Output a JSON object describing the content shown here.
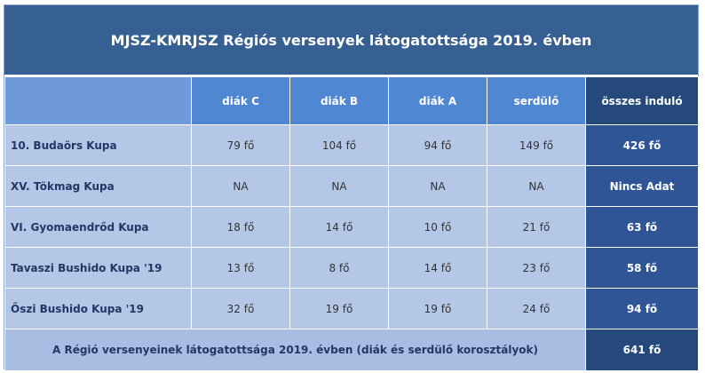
{
  "title": "MJSZ-KMRJSZ Régiós versenyek látogatottsága 2019. évben",
  "columns": [
    "diák C",
    "diák B",
    "diák A",
    "serdülő",
    "összes induló"
  ],
  "rows": [
    {
      "name": "10. Budaörs Kupa",
      "values": [
        "79 fő",
        "104 fő",
        "94 fő",
        "149 fő"
      ],
      "total": "426 fő"
    },
    {
      "name": "XV. Tökmag Kupa",
      "values": [
        "NA",
        "NA",
        "NA",
        "NA"
      ],
      "total": "Nincs Adat"
    },
    {
      "name": "VI. Gyomaendrőd Kupa",
      "values": [
        "18 fő",
        "14 fő",
        "10 fő",
        "21 fő"
      ],
      "total": "63 fő"
    },
    {
      "name": "Tavaszi Bushido Kupa '19",
      "values": [
        "13 fő",
        "8 fő",
        "14 fő",
        "23 fő"
      ],
      "total": "58 fő"
    },
    {
      "name": "Őszi Bushido Kupa '19",
      "values": [
        "32 fő",
        "19 fő",
        "19 fő",
        "24 fő"
      ],
      "total": "94 fő"
    }
  ],
  "footer": {
    "label": "A Régió versenyeinek látogatottsága 2019. évben (diák és serdülő korosztályok)",
    "total": "641 fő"
  },
  "colors": {
    "title_bg": "#376092",
    "header_bg": "#4f87d3",
    "cell_bg": "#b4c7e7",
    "total_bg": "#2f5597"
  }
}
